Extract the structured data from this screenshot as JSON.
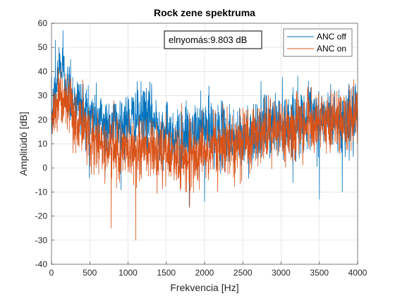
{
  "chart_data": {
    "type": "line",
    "title": "Rock zene spektruma",
    "xlabel": "Frekvencia [Hz]",
    "ylabel": "Amplitúdó [dB]",
    "xlim": [
      0,
      4000
    ],
    "ylim": [
      -40,
      60
    ],
    "xticks": [
      0,
      500,
      1000,
      1500,
      2000,
      2500,
      3000,
      3500,
      4000
    ],
    "yticks": [
      -40,
      -30,
      -20,
      -10,
      0,
      10,
      20,
      30,
      40,
      50,
      60
    ],
    "xtick_labels": [
      "0",
      "500",
      "1000",
      "1500",
      "2000",
      "2500",
      "3000",
      "3500",
      "4000"
    ],
    "ytick_labels": [
      "-40",
      "-30",
      "-20",
      "-10",
      "0",
      "10",
      "20",
      "30",
      "40",
      "50",
      "60"
    ],
    "grid": true,
    "legend_position": "top-right",
    "annotation": "elnyomás:9.803 dB",
    "series": [
      {
        "name": "ANC off",
        "color": "#0072BD",
        "x": [
          0,
          50,
          100,
          150,
          200,
          250,
          300,
          400,
          500,
          600,
          700,
          800,
          900,
          1000,
          1100,
          1200,
          1300,
          1400,
          1500,
          1600,
          1700,
          1800,
          1900,
          2000,
          2100,
          2200,
          2300,
          2400,
          2500,
          2600,
          2700,
          2800,
          2900,
          3000,
          3100,
          3200,
          3300,
          3400,
          3500,
          3600,
          3700,
          3800,
          3900,
          4000
        ],
        "y": [
          20,
          30,
          42,
          40,
          33,
          30,
          28,
          25,
          22,
          20,
          19,
          17,
          18,
          19,
          20,
          21,
          20,
          17,
          14,
          13,
          12,
          13,
          14,
          17,
          15,
          14,
          13,
          12,
          12,
          14,
          16,
          17,
          18,
          18,
          19,
          19,
          20,
          20,
          20,
          21,
          20,
          20,
          19,
          19
        ],
        "peaks": [
          [
            50,
            53
          ],
          [
            150,
            57
          ],
          [
            100,
            50
          ],
          [
            250,
            45
          ],
          [
            1240,
            33
          ],
          [
            2050,
            30
          ],
          [
            3900,
            32
          ]
        ],
        "dips": [
          [
            700,
            -4
          ],
          [
            1800,
            -16
          ],
          [
            2000,
            -14
          ],
          [
            3500,
            -13
          ],
          [
            3800,
            -10
          ]
        ]
      },
      {
        "name": "ANC on",
        "color": "#D95319",
        "x": [
          0,
          50,
          100,
          150,
          200,
          250,
          300,
          400,
          500,
          600,
          700,
          800,
          900,
          1000,
          1100,
          1200,
          1300,
          1400,
          1500,
          1600,
          1700,
          1800,
          1900,
          2000,
          2100,
          2200,
          2300,
          2400,
          2500,
          2600,
          2700,
          2800,
          2900,
          3000,
          3100,
          3200,
          3300,
          3400,
          3500,
          3600,
          3700,
          3800,
          3900,
          4000
        ],
        "y": [
          20,
          26,
          30,
          28,
          25,
          22,
          20,
          17,
          13,
          11,
          9,
          8,
          7,
          7,
          8,
          8,
          7,
          6,
          6,
          5,
          4,
          5,
          6,
          7,
          8,
          9,
          10,
          11,
          12,
          13,
          14,
          15,
          16,
          16,
          17,
          17,
          18,
          18,
          18,
          19,
          19,
          19,
          20,
          20
        ],
        "peaks": [
          [
            100,
            37
          ],
          [
            200,
            33
          ],
          [
            3200,
            30
          ],
          [
            3700,
            31
          ]
        ],
        "dips": [
          [
            780,
            -25
          ],
          [
            1100,
            -30
          ],
          [
            1750,
            -10
          ],
          [
            2050,
            -5
          ]
        ]
      }
    ]
  }
}
